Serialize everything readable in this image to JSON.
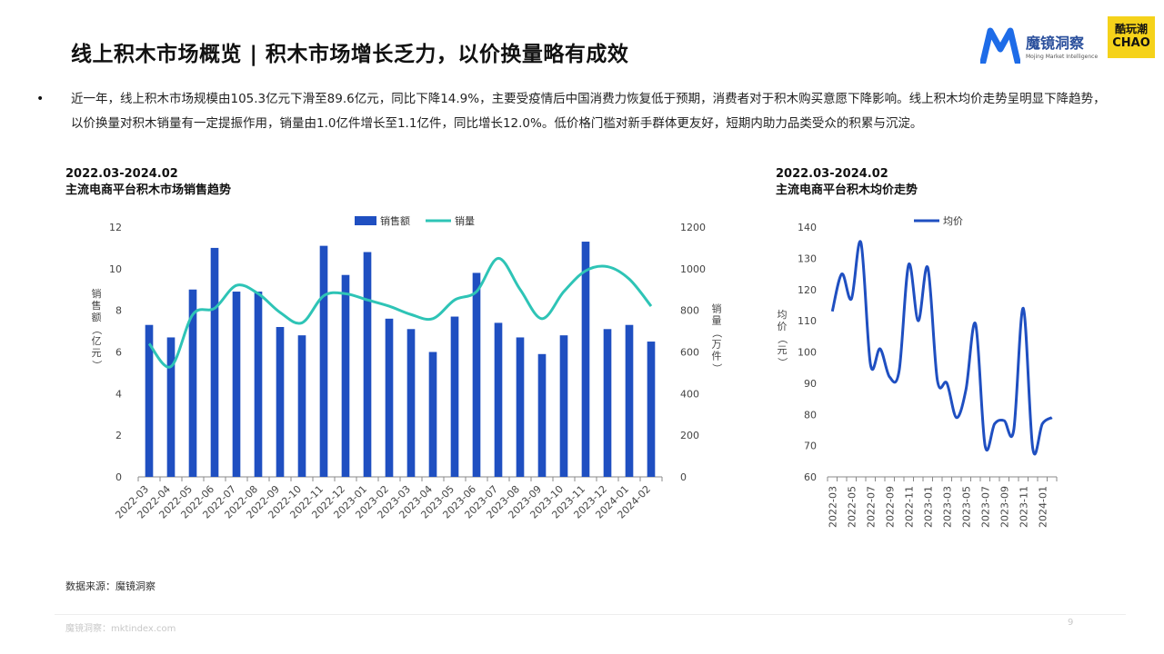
{
  "title": "线上积木市场概览 | 积木市场增长乏力，以价换量略有成效",
  "logo": {
    "name": "魔镜洞察",
    "sub": "Mojing Market Intelligence",
    "partner_top": "酷玩潮",
    "partner_bottom": "CHAO",
    "brand_color": "#1e6ce8"
  },
  "summary": "近一年，线上积木市场规模由105.3亿元下滑至89.6亿元，同比下降14.9%，主要受疫情后中国消费力恢复低于预期，消费者对于积木购买意愿下降影响。线上积木均价走势呈明显下降趋势，以价换量对积木销量有一定提振作用，销量由1.0亿件增长至1.1亿件，同比增长12.0%。低价格门槛对新手群体更友好，短期内助力品类受众的积累与沉淀。",
  "chart1_header": {
    "period": "2022.03-2024.02",
    "name": "主流电商平台积木市场销售趋势"
  },
  "chart2_header": {
    "period": "2022.03-2024.02",
    "name": "主流电商平台积木均价走势"
  },
  "source": "数据来源：魔镜洞察",
  "footer": "魔镜洞察：mktindex.com",
  "page_number": "9",
  "chart_data": [
    {
      "type": "bar",
      "categories": [
        "2022-03",
        "2022-04",
        "2022-05",
        "2022-06",
        "2022-07",
        "2022-08",
        "2022-09",
        "2022-10",
        "2022-11",
        "2022-12",
        "2023-01",
        "2023-02",
        "2023-03",
        "2023-04",
        "2023-05",
        "2023-06",
        "2023-07",
        "2023-08",
        "2023-09",
        "2023-10",
        "2023-11",
        "2023-12",
        "2024-01",
        "2024-02"
      ],
      "series": [
        {
          "name": "销售额",
          "type": "bar",
          "axis": "left",
          "color": "#1f4fc1",
          "values": [
            7.3,
            6.7,
            9.0,
            11.0,
            8.9,
            8.9,
            7.2,
            6.8,
            11.1,
            9.7,
            10.8,
            7.6,
            7.1,
            6.0,
            7.7,
            9.8,
            7.4,
            6.7,
            5.9,
            6.8,
            11.3,
            7.1,
            7.3,
            6.5
          ]
        },
        {
          "name": "销量",
          "type": "line",
          "axis": "right",
          "color": "#2ec4b6",
          "values": [
            640,
            530,
            780,
            810,
            920,
            880,
            790,
            740,
            870,
            880,
            850,
            820,
            780,
            760,
            850,
            890,
            1050,
            900,
            760,
            890,
            990,
            1010,
            950,
            820
          ]
        }
      ],
      "ylabel": "销售额（亿元）",
      "ylabel_right": "销量（万件）",
      "ylim": [
        0,
        12
      ],
      "yticks": [
        0,
        2,
        4,
        6,
        8,
        10,
        12
      ],
      "ylim_right": [
        0,
        1200
      ],
      "yticks_right": [
        0,
        200,
        400,
        600,
        800,
        1000,
        1200
      ],
      "legend": "top-center",
      "grid": false
    },
    {
      "type": "line",
      "categories": [
        "2022-03",
        "2022-04",
        "2022-05",
        "2022-06",
        "2022-07",
        "2022-08",
        "2022-09",
        "2022-10",
        "2022-11",
        "2022-12",
        "2023-01",
        "2023-02",
        "2023-03",
        "2023-04",
        "2023-05",
        "2023-06",
        "2023-07",
        "2023-08",
        "2023-09",
        "2023-10",
        "2023-11",
        "2023-12",
        "2024-01",
        "2024-02"
      ],
      "xtick_labels": [
        "2022-03",
        "2022-05",
        "2022-07",
        "2022-09",
        "2022-11",
        "2023-01",
        "2023-03",
        "2023-05",
        "2023-07",
        "2023-09",
        "2023-11",
        "2024-01"
      ],
      "series": [
        {
          "name": "均价",
          "color": "#1f4fc1",
          "values": [
            113,
            125,
            117,
            135,
            96,
            101,
            92,
            94,
            128,
            110,
            127,
            91,
            90,
            79,
            88,
            109,
            70,
            77,
            78,
            75,
            114,
            69,
            77,
            79
          ]
        }
      ],
      "ylabel": "均价（元）",
      "ylim": [
        60,
        140
      ],
      "yticks": [
        60,
        70,
        80,
        90,
        100,
        110,
        120,
        130,
        140
      ],
      "legend": "top-center",
      "grid": false
    }
  ]
}
